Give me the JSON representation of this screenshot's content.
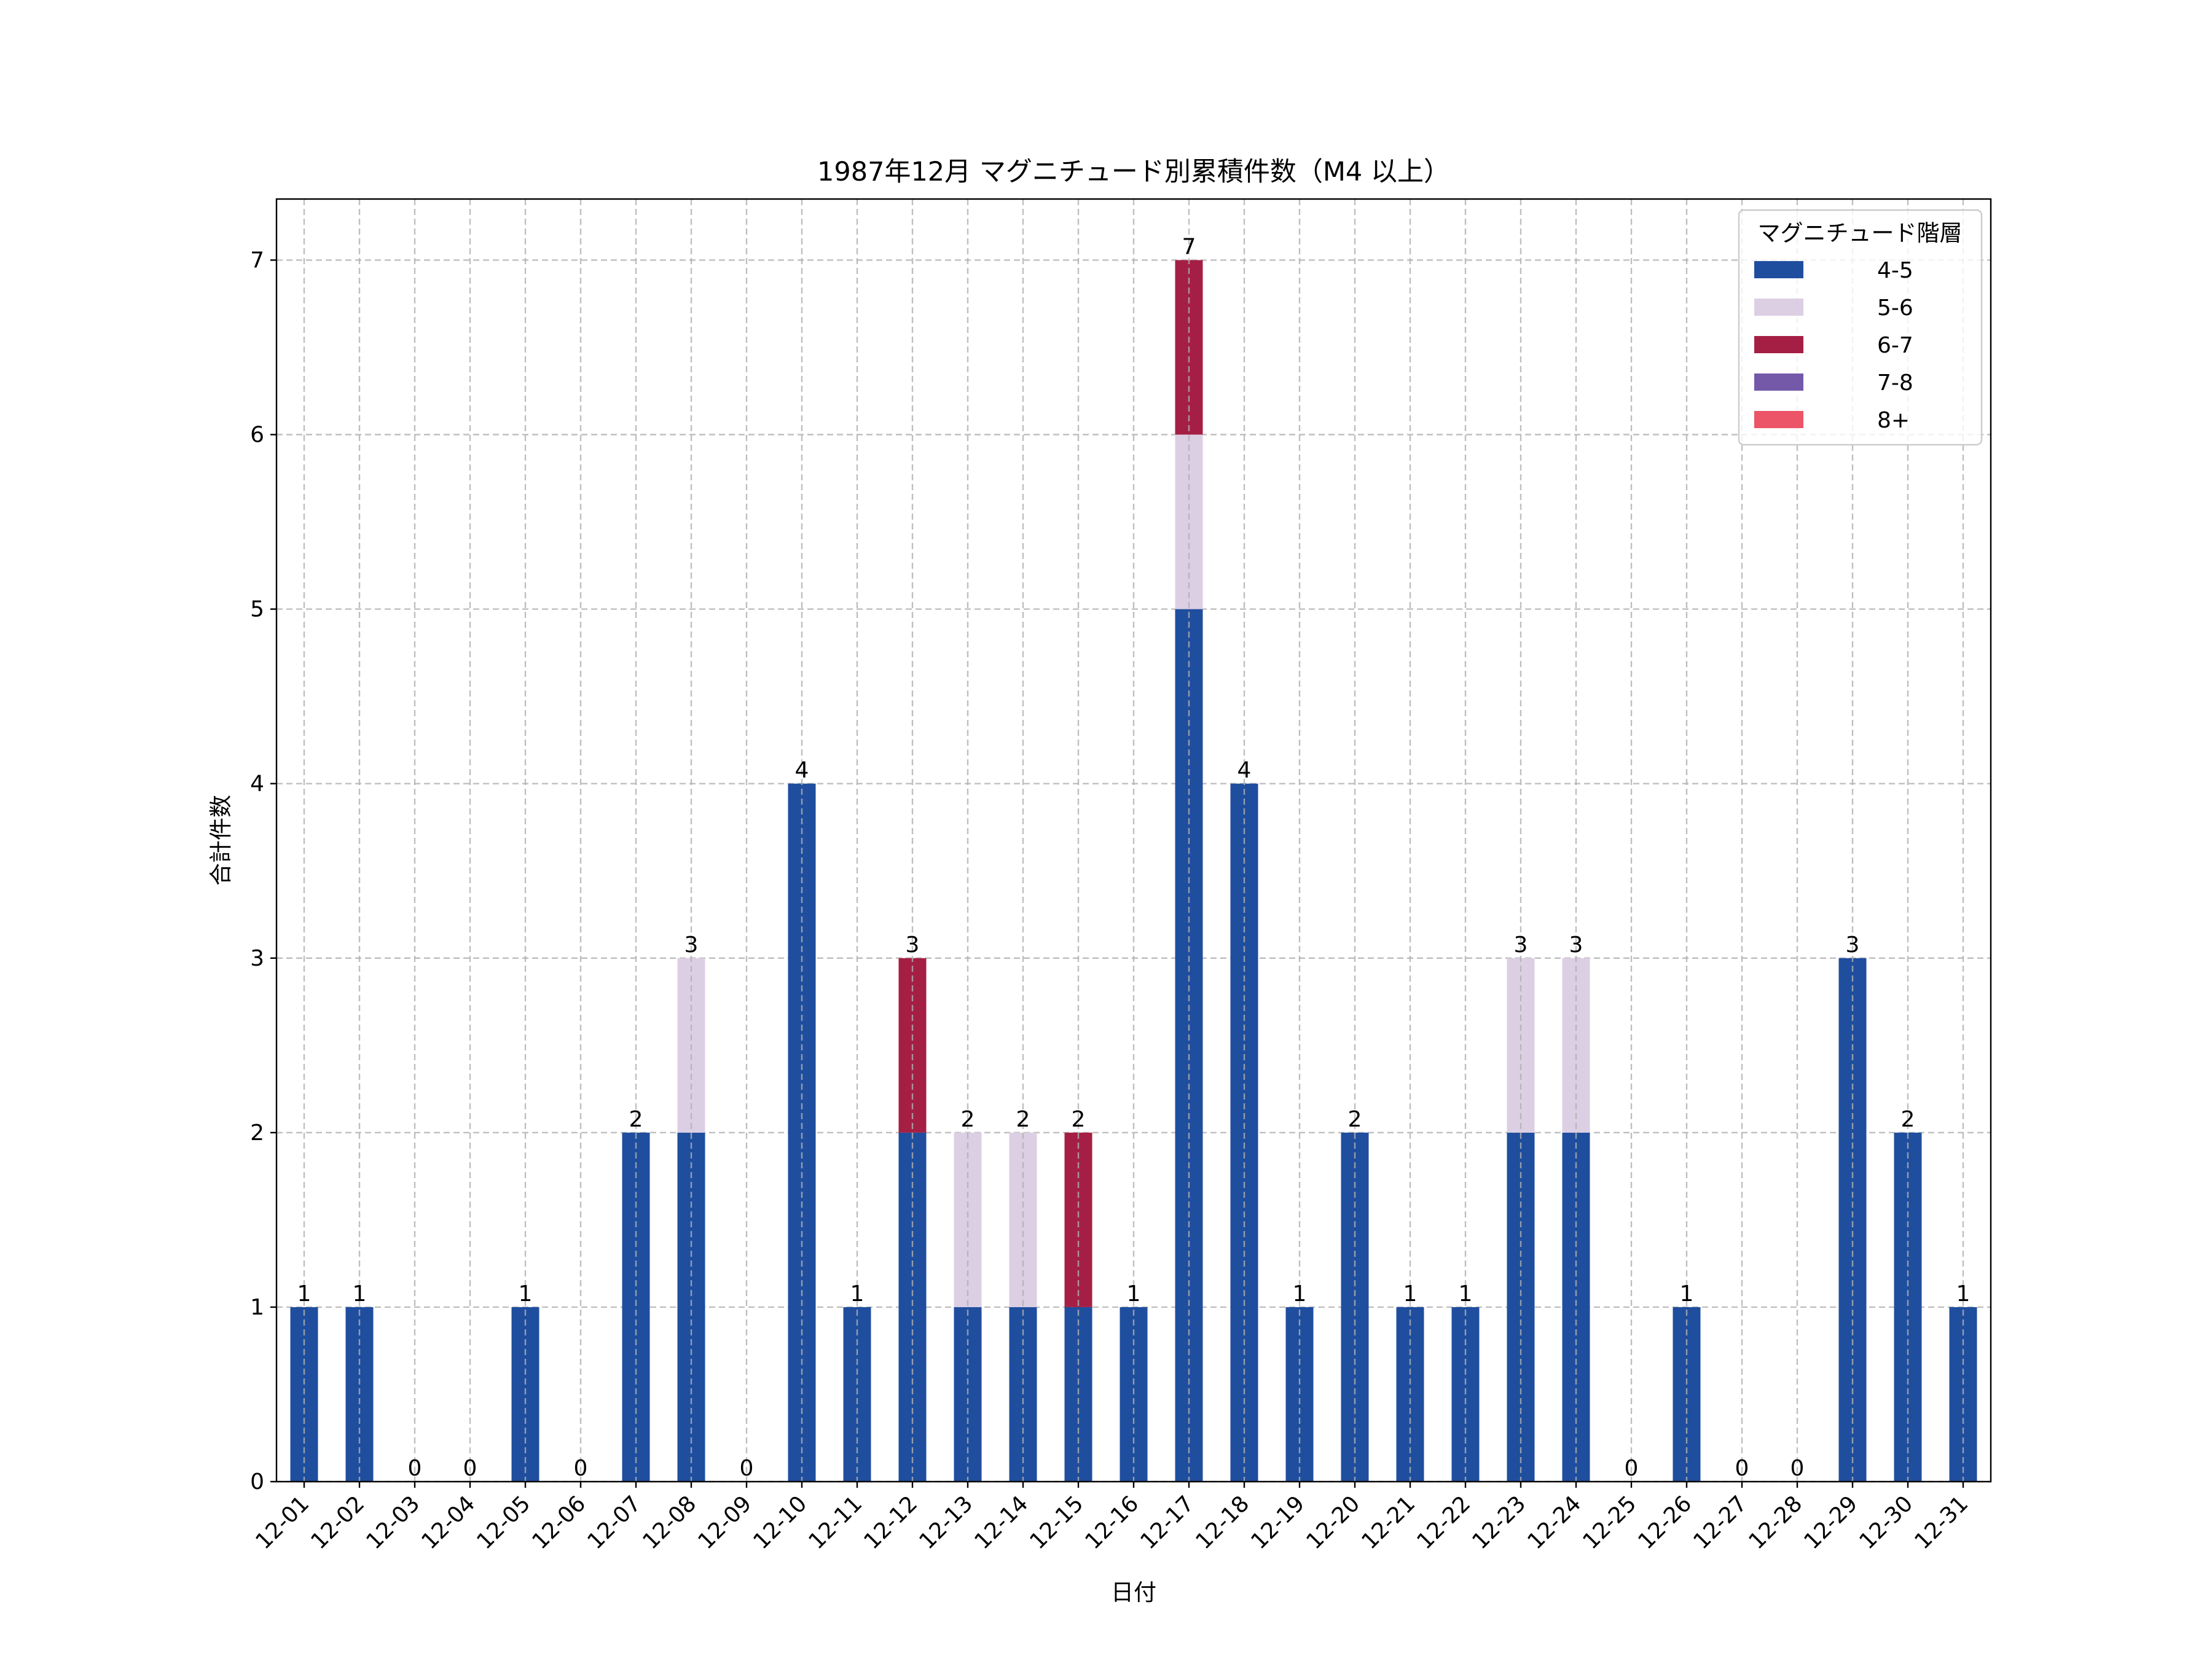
{
  "chart_data": {
    "type": "bar",
    "stacked": true,
    "title": "1987年12月 マグニチュード別累積件数（M4 以上）",
    "xlabel": "日付",
    "ylabel": "合計件数",
    "ylim": [
      0,
      7.35
    ],
    "yticks": [
      0,
      1,
      2,
      3,
      4,
      5,
      6,
      7
    ],
    "grid": true,
    "legend": {
      "title": "マグニチュード階層",
      "placement": "top-right"
    },
    "categories": [
      "12-01",
      "12-02",
      "12-03",
      "12-04",
      "12-05",
      "12-06",
      "12-07",
      "12-08",
      "12-09",
      "12-10",
      "12-11",
      "12-12",
      "12-13",
      "12-14",
      "12-15",
      "12-16",
      "12-17",
      "12-18",
      "12-19",
      "12-20",
      "12-21",
      "12-22",
      "12-23",
      "12-24",
      "12-25",
      "12-26",
      "12-27",
      "12-28",
      "12-29",
      "12-30",
      "12-31"
    ],
    "series": [
      {
        "name": "4-5",
        "color": "#1f4e9e",
        "values": [
          1,
          1,
          0,
          0,
          1,
          0,
          2,
          2,
          0,
          4,
          1,
          2,
          1,
          1,
          1,
          1,
          5,
          4,
          1,
          2,
          1,
          1,
          2,
          2,
          0,
          1,
          0,
          0,
          3,
          2,
          1
        ]
      },
      {
        "name": "5-6",
        "color": "#dccfe4",
        "values": [
          0,
          0,
          0,
          0,
          0,
          0,
          0,
          1,
          0,
          0,
          0,
          0,
          1,
          1,
          0,
          0,
          1,
          0,
          0,
          0,
          0,
          0,
          1,
          1,
          0,
          0,
          0,
          0,
          0,
          0,
          0
        ]
      },
      {
        "name": "6-7",
        "color": "#a51f45",
        "values": [
          0,
          0,
          0,
          0,
          0,
          0,
          0,
          0,
          0,
          0,
          0,
          1,
          0,
          0,
          1,
          0,
          1,
          0,
          0,
          0,
          0,
          0,
          0,
          0,
          0,
          0,
          0,
          0,
          0,
          0,
          0
        ]
      },
      {
        "name": "7-8",
        "color": "#7459a8",
        "values": [
          0,
          0,
          0,
          0,
          0,
          0,
          0,
          0,
          0,
          0,
          0,
          0,
          0,
          0,
          0,
          0,
          0,
          0,
          0,
          0,
          0,
          0,
          0,
          0,
          0,
          0,
          0,
          0,
          0,
          0,
          0
        ]
      },
      {
        "name": "8+",
        "color": "#ec5467",
        "values": [
          0,
          0,
          0,
          0,
          0,
          0,
          0,
          0,
          0,
          0,
          0,
          0,
          0,
          0,
          0,
          0,
          0,
          0,
          0,
          0,
          0,
          0,
          0,
          0,
          0,
          0,
          0,
          0,
          0,
          0,
          0
        ]
      }
    ],
    "totals": [
      1,
      1,
      0,
      0,
      1,
      0,
      2,
      3,
      0,
      4,
      1,
      3,
      2,
      2,
      2,
      1,
      7,
      4,
      1,
      2,
      1,
      1,
      3,
      3,
      0,
      1,
      0,
      0,
      3,
      2,
      1
    ]
  }
}
